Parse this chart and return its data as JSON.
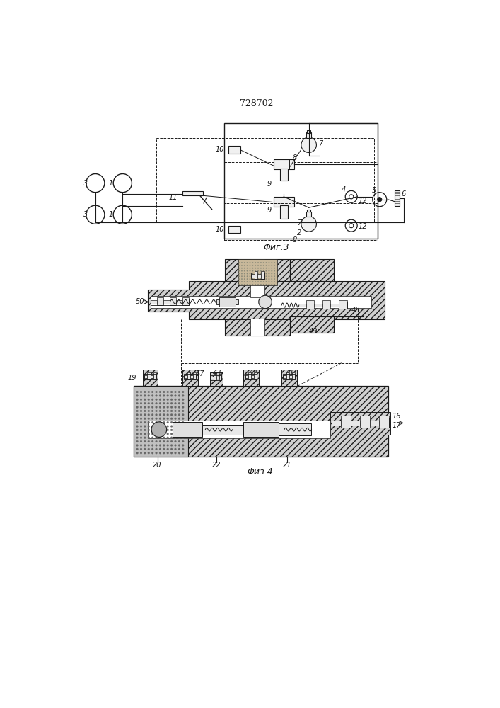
{
  "title": "728702",
  "fig3_label": "Φиг.3",
  "fig4_label": "Φиз.4",
  "bg_color": "#ffffff",
  "line_color": "#1a1a1a"
}
